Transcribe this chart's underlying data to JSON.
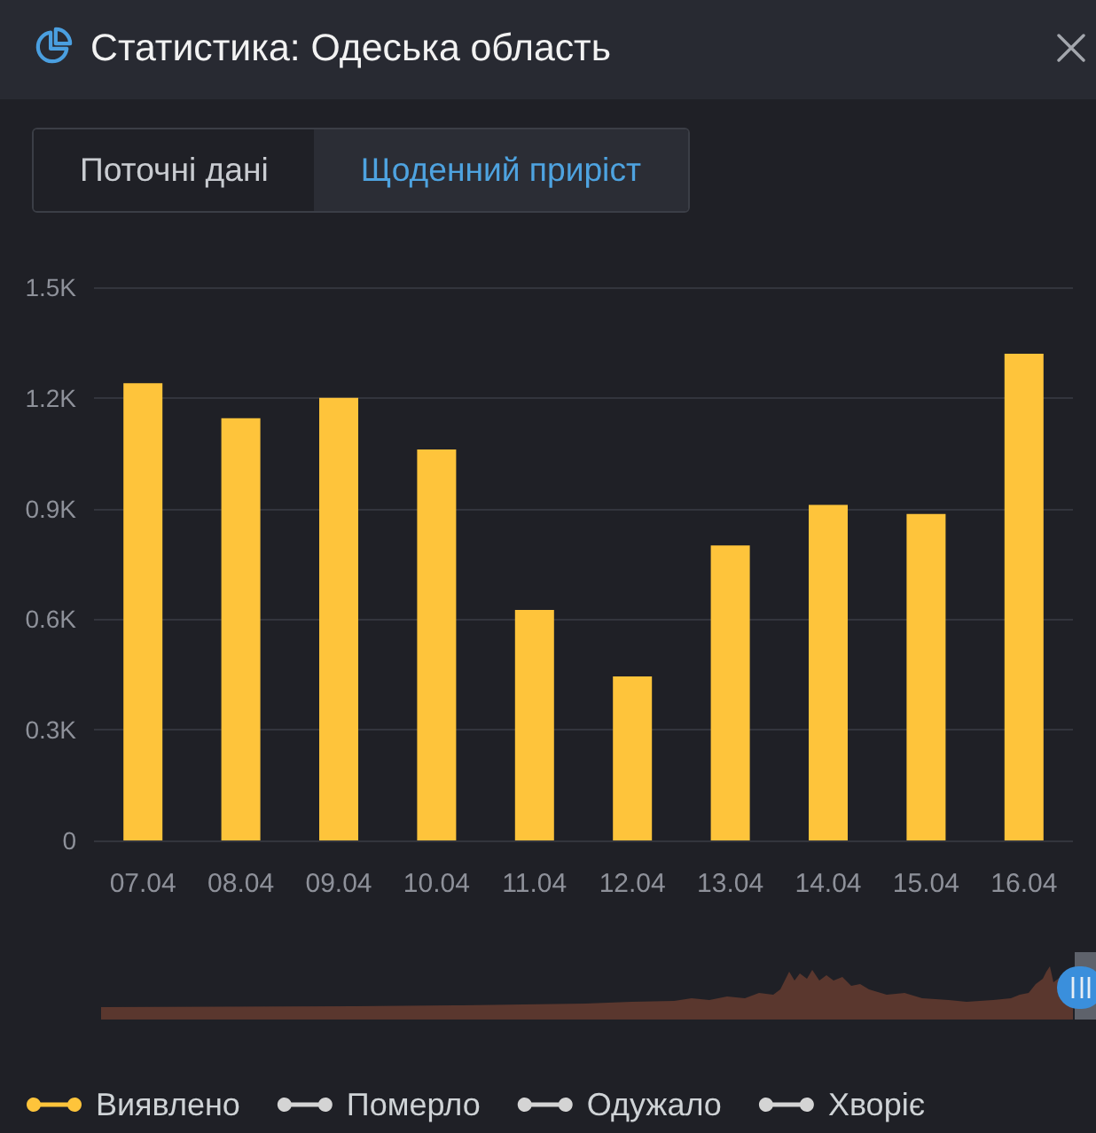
{
  "chart_data": {
    "type": "bar",
    "title": "Статистика: Одеська область",
    "subtitle": "Щоденний приріст",
    "annotations": [
      "Поточні дані"
    ],
    "categories": [
      "07.04",
      "08.04",
      "09.04",
      "10.04",
      "11.04",
      "12.04",
      "13.04",
      "14.04",
      "15.04",
      "16.04"
    ],
    "series": [
      {
        "name": "Виявлено",
        "color": "#fec43b",
        "values": [
          1240,
          1145,
          1200,
          1060,
          625,
          445,
          800,
          910,
          885,
          1320
        ]
      },
      {
        "name": "Померло",
        "color": "#d4d4d4",
        "values": [
          null,
          null,
          null,
          null,
          null,
          null,
          null,
          null,
          null,
          null
        ]
      },
      {
        "name": "Одужало",
        "color": "#d4d4d4",
        "values": [
          null,
          null,
          null,
          null,
          null,
          null,
          null,
          null,
          null,
          null
        ]
      },
      {
        "name": "Хворіє",
        "color": "#d4d4d4",
        "values": [
          null,
          null,
          null,
          null,
          null,
          null,
          null,
          null,
          null,
          null
        ]
      }
    ],
    "ylim": [
      0,
      1500
    ],
    "yticks": [
      0,
      {
        "value": 300,
        "label": "0.3K"
      },
      {
        "value": 600,
        "label": "0.6K"
      },
      {
        "value": 900,
        "label": "0.9K"
      },
      {
        "value": 1200,
        "label": "1.2K"
      },
      {
        "value": 1500,
        "label": "1.5K"
      }
    ],
    "grid": "y",
    "legend": "bottom left"
  }
}
